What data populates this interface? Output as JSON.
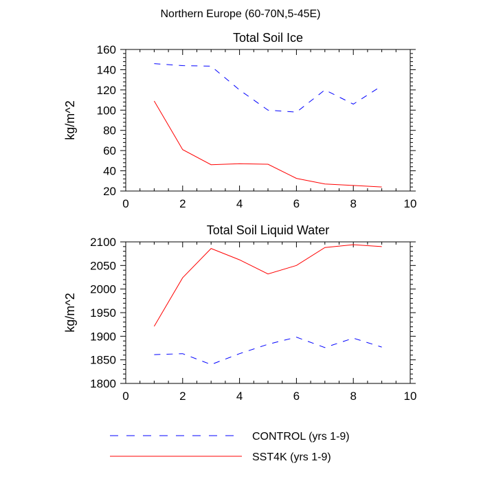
{
  "title": "Northern Europe (60-70N,5-45E)",
  "chart_data": [
    {
      "type": "line",
      "title": "Total Soil Ice",
      "xlabel": "",
      "ylabel": "kg/m^2",
      "xlim": [
        0,
        10
      ],
      "ylim": [
        20,
        160
      ],
      "xticks": [
        0,
        2,
        4,
        6,
        8,
        10
      ],
      "yticks": [
        20,
        40,
        60,
        80,
        100,
        120,
        140,
        160
      ],
      "x": [
        1,
        2,
        3,
        4,
        5,
        6,
        7,
        8,
        9
      ],
      "series": [
        {
          "name": "CONTROL (yrs 1-9)",
          "color": "#0000ff",
          "style": "dashed",
          "values": [
            146,
            144,
            143.5,
            120,
            100,
            98,
            120,
            106,
            124
          ]
        },
        {
          "name": "SST4K (yrs 1-9)",
          "color": "#ff0000",
          "style": "solid",
          "values": [
            109,
            61,
            46,
            47,
            46.5,
            32.5,
            27,
            25.5,
            24
          ]
        }
      ]
    },
    {
      "type": "line",
      "title": "Total Soil Liquid Water",
      "xlabel": "",
      "ylabel": "kg/m^2",
      "xlim": [
        0,
        10
      ],
      "ylim": [
        1800,
        2100
      ],
      "xticks": [
        0,
        2,
        4,
        6,
        8,
        10
      ],
      "yticks": [
        1800,
        1850,
        1900,
        1950,
        2000,
        2050,
        2100
      ],
      "x": [
        1,
        2,
        3,
        4,
        5,
        6,
        7,
        8,
        9
      ],
      "series": [
        {
          "name": "CONTROL (yrs 1-9)",
          "color": "#0000ff",
          "style": "dashed",
          "values": [
            1861,
            1863,
            1840,
            1863,
            1883,
            1898,
            1876,
            1896,
            1877
          ]
        },
        {
          "name": "SST4K (yrs 1-9)",
          "color": "#ff0000",
          "style": "solid",
          "values": [
            1921,
            2024,
            2086,
            2062,
            2032,
            2050,
            2088,
            2094,
            2090
          ]
        }
      ]
    }
  ],
  "legend": {
    "position": "bottom",
    "items": [
      {
        "label": "CONTROL (yrs 1-9)",
        "color": "#0000ff",
        "style": "dashed"
      },
      {
        "label": "SST4K (yrs 1-9)",
        "color": "#ff0000",
        "style": "solid"
      }
    ]
  }
}
